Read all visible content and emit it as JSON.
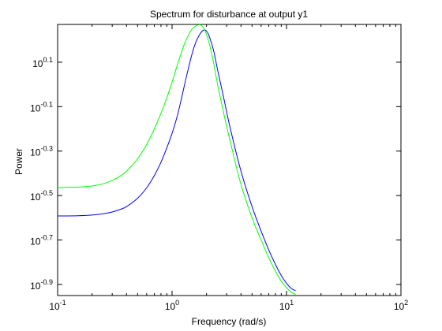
{
  "chart_data": {
    "type": "line",
    "title": "Spectrum for disturbance at output y1",
    "xlabel": "Frequency (rad/s)",
    "ylabel": "Power",
    "xscale": "log",
    "yscale": "log",
    "xlim": [
      0.1,
      100
    ],
    "ylim_log10": [
      -0.95,
      0.27
    ],
    "x_ticks": [
      {
        "value": 0.1,
        "base": "10",
        "exp": "-1"
      },
      {
        "value": 1,
        "base": "10",
        "exp": "0"
      },
      {
        "value": 10,
        "base": "10",
        "exp": "1"
      },
      {
        "value": 100,
        "base": "10",
        "exp": "2"
      }
    ],
    "y_ticks": [
      {
        "log10": 0.1,
        "base": "10",
        "exp": "0.1"
      },
      {
        "log10": -0.1,
        "base": "10",
        "exp": "-0.1"
      },
      {
        "log10": -0.3,
        "base": "10",
        "exp": "-0.3"
      },
      {
        "log10": -0.5,
        "base": "10",
        "exp": "-0.5"
      },
      {
        "log10": -0.7,
        "base": "10",
        "exp": "-0.7"
      },
      {
        "log10": -0.9,
        "base": "10",
        "exp": "-0.9"
      }
    ],
    "grid": false,
    "series": [
      {
        "color": "#0000ff",
        "x": [
          0.1,
          0.15,
          0.2,
          0.25,
          0.3,
          0.35,
          0.4,
          0.5,
          0.6,
          0.7,
          0.8,
          0.9,
          1.0,
          1.1,
          1.2,
          1.3,
          1.4,
          1.5,
          1.6,
          1.7,
          1.8,
          1.9,
          2.0,
          2.1,
          2.3,
          2.5,
          2.8,
          3.2,
          4.0,
          5.0,
          6.0,
          7.0,
          8.0,
          9.0,
          10.0,
          11.0,
          12.0
        ],
        "y_log10": [
          -0.592,
          -0.591,
          -0.588,
          -0.582,
          -0.574,
          -0.563,
          -0.55,
          -0.512,
          -0.465,
          -0.41,
          -0.35,
          -0.285,
          -0.22,
          -0.15,
          -0.07,
          0.01,
          0.08,
          0.14,
          0.185,
          0.215,
          0.235,
          0.245,
          0.24,
          0.22,
          0.155,
          0.065,
          -0.05,
          -0.19,
          -0.39,
          -0.55,
          -0.66,
          -0.745,
          -0.81,
          -0.86,
          -0.895,
          -0.918,
          -0.928
        ]
      },
      {
        "color": "#00ff00",
        "x": [
          0.1,
          0.15,
          0.2,
          0.25,
          0.3,
          0.35,
          0.4,
          0.5,
          0.6,
          0.7,
          0.8,
          0.9,
          1.0,
          1.1,
          1.2,
          1.3,
          1.4,
          1.5,
          1.6,
          1.7,
          1.8,
          1.9,
          2.0,
          2.1,
          2.3,
          2.5,
          2.8,
          3.2,
          4.0,
          5.0,
          6.0,
          7.0,
          8.0,
          9.0,
          10.0,
          11.0,
          12.0
        ],
        "y_log10": [
          -0.464,
          -0.462,
          -0.457,
          -0.447,
          -0.432,
          -0.413,
          -0.39,
          -0.335,
          -0.27,
          -0.2,
          -0.13,
          -0.06,
          0.01,
          0.08,
          0.14,
          0.19,
          0.225,
          0.25,
          0.262,
          0.268,
          0.266,
          0.25,
          0.225,
          0.19,
          0.1,
          0.0,
          -0.12,
          -0.25,
          -0.45,
          -0.6,
          -0.7,
          -0.78,
          -0.84,
          -0.885,
          -0.915,
          -0.935,
          -0.945
        ]
      }
    ]
  }
}
